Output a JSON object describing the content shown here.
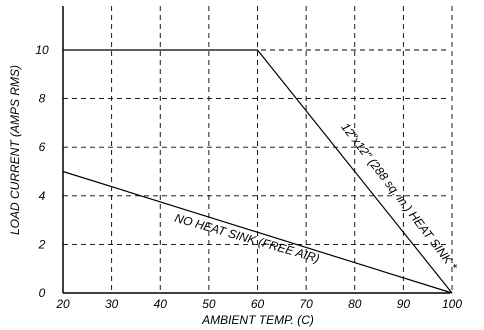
{
  "chart_data": {
    "type": "line",
    "title": "",
    "xlabel": "AMBIENT TEMP. (C)",
    "ylabel": "LOAD CURRENT (AMPS RMS)",
    "xlim": [
      20,
      100
    ],
    "ylim": [
      0,
      10
    ],
    "x_ticks": [
      "20",
      "30",
      "40",
      "50",
      "60",
      "70",
      "80",
      "90",
      "100"
    ],
    "y_ticks": [
      "0",
      "2",
      "4",
      "6",
      "8",
      "10"
    ],
    "grid": true,
    "grid_style": "dashed",
    "series": [
      {
        "name": "12\"x12\" (288 sq. in.) HEAT SINK *",
        "x": [
          20,
          60,
          100
        ],
        "y": [
          10,
          10,
          0
        ]
      },
      {
        "name": "NO HEAT SINK (FREE AIR)",
        "x": [
          20,
          100
        ],
        "y": [
          5,
          0
        ]
      }
    ],
    "colors": {
      "line": "#000000",
      "grid": "#000000"
    }
  }
}
